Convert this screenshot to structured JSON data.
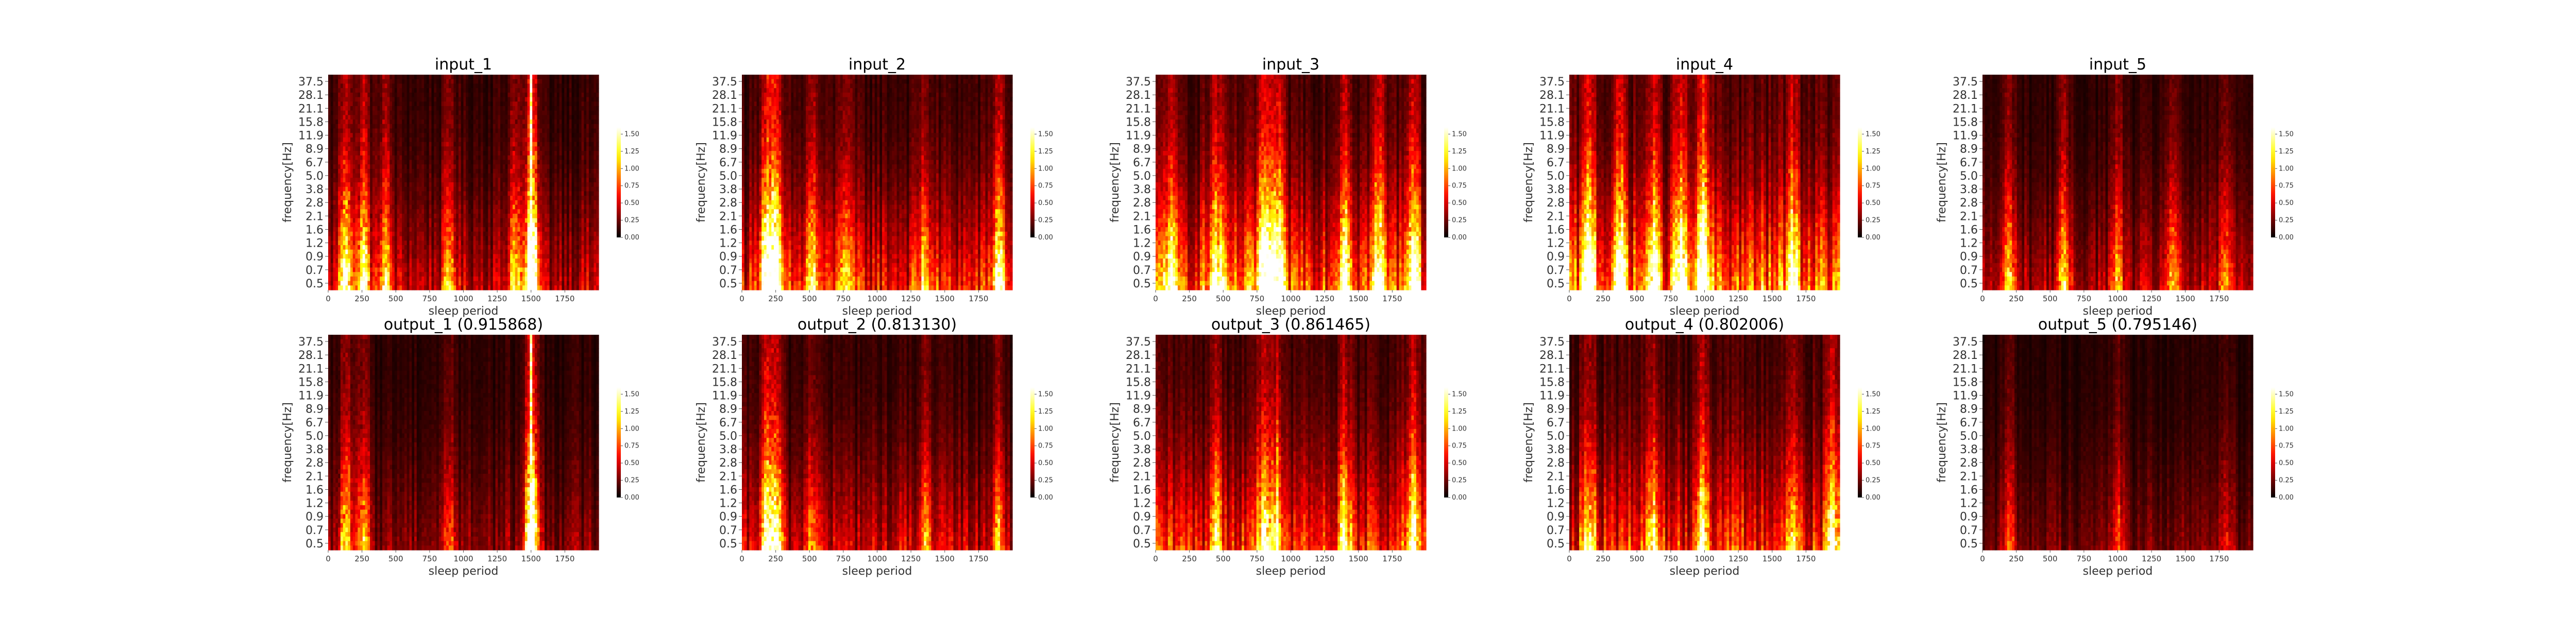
{
  "chart_data": [
    {
      "type": "heatmap",
      "title": "input_1",
      "xlabel": "sleep period",
      "ylabel": "frequency[Hz]",
      "x_ticks": [
        0,
        250,
        500,
        750,
        1000,
        1250,
        1500,
        1750
      ],
      "xlim": [
        0,
        2000
      ],
      "y_ticks": [
        "37.5",
        "28.1",
        "21.1",
        "15.8",
        "11.9",
        "8.9",
        "6.7",
        "5.0",
        "3.8",
        "2.8",
        "2.1",
        "1.6",
        "1.2",
        "0.9",
        "0.7",
        "0.5"
      ],
      "colorbar": {
        "ticks": [
          0.0,
          0.25,
          0.5,
          0.75,
          1.0,
          1.25,
          1.5
        ],
        "range": [
          0,
          1.6
        ],
        "colormap": "hot"
      },
      "intensity_profile": {
        "events": [
          [
            130,
            1.4
          ],
          [
            260,
            1.2
          ],
          [
            420,
            0.9
          ],
          [
            900,
            0.7
          ],
          [
            1380,
            0.9
          ],
          [
            1505,
            2.0
          ]
        ],
        "background": 0.35,
        "low_freq_boost": 0.8
      }
    },
    {
      "type": "heatmap",
      "title": "input_2",
      "xlabel": "sleep period",
      "ylabel": "frequency[Hz]",
      "x_ticks": [
        0,
        250,
        500,
        750,
        1000,
        1250,
        1500,
        1750
      ],
      "xlim": [
        0,
        2000
      ],
      "y_ticks": [
        "37.5",
        "28.1",
        "21.1",
        "15.8",
        "11.9",
        "8.9",
        "6.7",
        "5.0",
        "3.8",
        "2.8",
        "2.1",
        "1.6",
        "1.2",
        "0.9",
        "0.7",
        "0.5"
      ],
      "colorbar": {
        "ticks": [
          0.0,
          0.25,
          0.5,
          0.75,
          1.0,
          1.25,
          1.5
        ],
        "range": [
          0,
          1.6
        ],
        "colormap": "hot"
      },
      "intensity_profile": {
        "events": [
          [
            180,
            1.6
          ],
          [
            250,
            1.5
          ],
          [
            520,
            0.9
          ],
          [
            760,
            0.8
          ],
          [
            1350,
            0.7
          ],
          [
            1900,
            1.2
          ]
        ],
        "background": 0.4,
        "low_freq_boost": 1.0
      }
    },
    {
      "type": "heatmap",
      "title": "input_3",
      "xlabel": "sleep period",
      "ylabel": "frequency[Hz]",
      "x_ticks": [
        0,
        250,
        500,
        750,
        1000,
        1250,
        1500,
        1750
      ],
      "xlim": [
        0,
        2000
      ],
      "y_ticks": [
        "37.5",
        "28.1",
        "21.1",
        "15.8",
        "11.9",
        "8.9",
        "6.7",
        "5.0",
        "3.8",
        "2.8",
        "2.1",
        "1.6",
        "1.2",
        "0.9",
        "0.7",
        "0.5"
      ],
      "colorbar": {
        "ticks": [
          0.0,
          0.25,
          0.5,
          0.75,
          1.0,
          1.25,
          1.5
        ],
        "range": [
          0,
          1.6
        ],
        "colormap": "hot"
      },
      "intensity_profile": {
        "events": [
          [
            100,
            0.9
          ],
          [
            450,
            1.0
          ],
          [
            800,
            1.5
          ],
          [
            900,
            1.4
          ],
          [
            1400,
            1.2
          ],
          [
            1650,
            1.1
          ],
          [
            1900,
            1.3
          ]
        ],
        "background": 0.5,
        "low_freq_boost": 1.1
      }
    },
    {
      "type": "heatmap",
      "title": "input_4",
      "xlabel": "sleep period",
      "ylabel": "frequency[Hz]",
      "x_ticks": [
        0,
        250,
        500,
        750,
        1000,
        1250,
        1500,
        1750
      ],
      "xlim": [
        0,
        2000
      ],
      "y_ticks": [
        "37.5",
        "28.1",
        "21.1",
        "15.8",
        "11.9",
        "8.9",
        "6.7",
        "5.0",
        "3.8",
        "2.8",
        "2.1",
        "1.6",
        "1.2",
        "0.9",
        "0.7",
        "0.5"
      ],
      "colorbar": {
        "ticks": [
          0.0,
          0.25,
          0.5,
          0.75,
          1.0,
          1.25,
          1.5
        ],
        "range": [
          0,
          1.6
        ],
        "colormap": "hot"
      },
      "intensity_profile": {
        "events": [
          [
            150,
            1.5
          ],
          [
            380,
            1.2
          ],
          [
            620,
            1.0
          ],
          [
            820,
            1.3
          ],
          [
            990,
            1.6
          ],
          [
            1650,
            1.1
          ]
        ],
        "background": 0.55,
        "low_freq_boost": 1.0
      }
    },
    {
      "type": "heatmap",
      "title": "input_5",
      "xlabel": "sleep period",
      "ylabel": "frequency[Hz]",
      "x_ticks": [
        0,
        250,
        500,
        750,
        1000,
        1250,
        1500,
        1750
      ],
      "xlim": [
        0,
        2000
      ],
      "y_ticks": [
        "37.5",
        "28.1",
        "21.1",
        "15.8",
        "11.9",
        "8.9",
        "6.7",
        "5.0",
        "3.8",
        "2.8",
        "2.1",
        "1.6",
        "1.2",
        "0.9",
        "0.7",
        "0.5"
      ],
      "colorbar": {
        "ticks": [
          0.0,
          0.25,
          0.5,
          0.75,
          1.0,
          1.25,
          1.5
        ],
        "range": [
          0,
          1.6
        ],
        "colormap": "hot"
      },
      "intensity_profile": {
        "events": [
          [
            200,
            0.8
          ],
          [
            600,
            0.8
          ],
          [
            1000,
            0.7
          ],
          [
            1400,
            0.7
          ],
          [
            1800,
            0.6
          ]
        ],
        "background": 0.3,
        "low_freq_boost": 0.8
      }
    },
    {
      "type": "heatmap",
      "title": "output_1 (0.915868)",
      "xlabel": "sleep period",
      "ylabel": "frequency[Hz]",
      "x_ticks": [
        0,
        250,
        500,
        750,
        1000,
        1250,
        1500,
        1750
      ],
      "xlim": [
        0,
        2000
      ],
      "y_ticks": [
        "37.5",
        "28.1",
        "21.1",
        "15.8",
        "11.9",
        "8.9",
        "6.7",
        "5.0",
        "3.8",
        "2.8",
        "2.1",
        "1.6",
        "1.2",
        "0.9",
        "0.7",
        "0.5"
      ],
      "colorbar": {
        "ticks": [
          0.0,
          0.25,
          0.5,
          0.75,
          1.0,
          1.25,
          1.5
        ],
        "range": [
          0,
          1.6
        ],
        "colormap": "hot"
      },
      "intensity_profile": {
        "events": [
          [
            130,
            0.9
          ],
          [
            260,
            0.8
          ],
          [
            900,
            0.5
          ],
          [
            1505,
            2.0
          ]
        ],
        "background": 0.3,
        "low_freq_boost": 0.6
      }
    },
    {
      "type": "heatmap",
      "title": "output_2 (0.813130)",
      "xlabel": "sleep period",
      "ylabel": "frequency[Hz]",
      "x_ticks": [
        0,
        250,
        500,
        750,
        1000,
        1250,
        1500,
        1750
      ],
      "xlim": [
        0,
        2000
      ],
      "y_ticks": [
        "37.5",
        "28.1",
        "21.1",
        "15.8",
        "11.9",
        "8.9",
        "6.7",
        "5.0",
        "3.8",
        "2.8",
        "2.1",
        "1.6",
        "1.2",
        "0.9",
        "0.7",
        "0.5"
      ],
      "colorbar": {
        "ticks": [
          0.0,
          0.25,
          0.5,
          0.75,
          1.0,
          1.25,
          1.5
        ],
        "range": [
          0,
          1.6
        ],
        "colormap": "hot"
      },
      "intensity_profile": {
        "events": [
          [
            180,
            1.2
          ],
          [
            250,
            1.2
          ],
          [
            520,
            0.6
          ],
          [
            1350,
            0.5
          ],
          [
            1900,
            0.7
          ]
        ],
        "background": 0.35,
        "low_freq_boost": 0.8
      }
    },
    {
      "type": "heatmap",
      "title": "output_3 (0.861465)",
      "xlabel": "sleep period",
      "ylabel": "frequency[Hz]",
      "x_ticks": [
        0,
        250,
        500,
        750,
        1000,
        1250,
        1500,
        1750
      ],
      "xlim": [
        0,
        2000
      ],
      "y_ticks": [
        "37.5",
        "28.1",
        "21.1",
        "15.8",
        "11.9",
        "8.9",
        "6.7",
        "5.0",
        "3.8",
        "2.8",
        "2.1",
        "1.6",
        "1.2",
        "0.9",
        "0.7",
        "0.5"
      ],
      "colorbar": {
        "ticks": [
          0.0,
          0.25,
          0.5,
          0.75,
          1.0,
          1.25,
          1.5
        ],
        "range": [
          0,
          1.6
        ],
        "colormap": "hot"
      },
      "intensity_profile": {
        "events": [
          [
            450,
            0.8
          ],
          [
            800,
            1.1
          ],
          [
            900,
            1.0
          ],
          [
            1400,
            0.9
          ],
          [
            1900,
            1.0
          ]
        ],
        "background": 0.45,
        "low_freq_boost": 0.9
      }
    },
    {
      "type": "heatmap",
      "title": "output_4 (0.802006)",
      "xlabel": "sleep period",
      "ylabel": "frequency[Hz]",
      "x_ticks": [
        0,
        250,
        500,
        750,
        1000,
        1250,
        1500,
        1750
      ],
      "xlim": [
        0,
        2000
      ],
      "y_ticks": [
        "37.5",
        "28.1",
        "21.1",
        "15.8",
        "11.9",
        "8.9",
        "6.7",
        "5.0",
        "3.8",
        "2.8",
        "2.1",
        "1.6",
        "1.2",
        "0.9",
        "0.7",
        "0.5"
      ],
      "colorbar": {
        "ticks": [
          0.0,
          0.25,
          0.5,
          0.75,
          1.0,
          1.25,
          1.5
        ],
        "range": [
          0,
          1.6
        ],
        "colormap": "hot"
      },
      "intensity_profile": {
        "events": [
          [
            150,
            1.0
          ],
          [
            620,
            0.8
          ],
          [
            990,
            1.2
          ],
          [
            1650,
            0.8
          ],
          [
            1950,
            1.1
          ]
        ],
        "background": 0.45,
        "low_freq_boost": 0.9
      }
    },
    {
      "type": "heatmap",
      "title": "output_5 (0.795146)",
      "xlabel": "sleep period",
      "ylabel": "frequency[Hz]",
      "x_ticks": [
        0,
        250,
        500,
        750,
        1000,
        1250,
        1500,
        1750
      ],
      "xlim": [
        0,
        2000
      ],
      "y_ticks": [
        "37.5",
        "28.1",
        "21.1",
        "15.8",
        "11.9",
        "8.9",
        "6.7",
        "5.0",
        "3.8",
        "2.8",
        "2.1",
        "1.6",
        "1.2",
        "0.9",
        "0.7",
        "0.5"
      ],
      "colorbar": {
        "ticks": [
          0.0,
          0.25,
          0.5,
          0.75,
          1.0,
          1.25,
          1.5
        ],
        "range": [
          0,
          1.6
        ],
        "colormap": "hot"
      },
      "intensity_profile": {
        "events": [
          [
            200,
            0.5
          ],
          [
            1000,
            0.5
          ],
          [
            1800,
            0.4
          ]
        ],
        "background": 0.25,
        "low_freq_boost": 0.6
      }
    }
  ]
}
